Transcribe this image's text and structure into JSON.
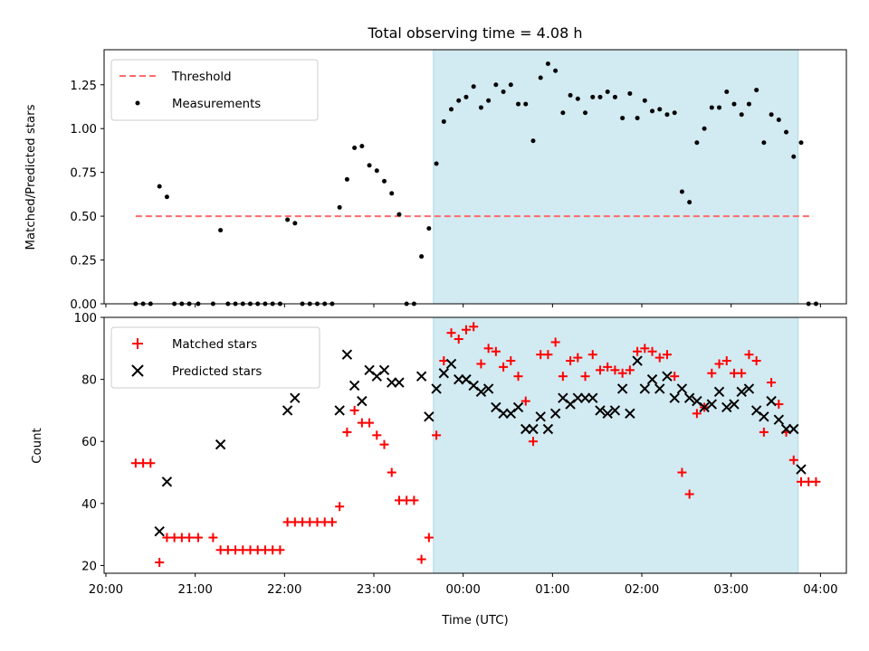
{
  "chart_data": [
    {
      "type": "scatter",
      "title": "Total observing time = 4.08 h",
      "xlabel": "",
      "ylabel": "Matched/Predicted stars",
      "ylim": [
        0,
        1.45
      ],
      "yticks": [
        "0.00",
        "0.25",
        "0.50",
        "0.75",
        "1.00",
        "1.25"
      ],
      "xlim_hours": [
        19.98,
        28.29
      ],
      "legend_position": "top-left",
      "shaded_span": {
        "start": "23:40",
        "end": "03:45",
        "color": "#add8e6"
      },
      "series": [
        {
          "name": "Threshold",
          "kind": "dashed-line",
          "color": "#ff6b6b",
          "y": 0.5,
          "x_range": [
            "20:20",
            "03:55"
          ]
        },
        {
          "name": "Measurements",
          "kind": "points",
          "color": "#000000",
          "points": [
            [
              "20:20",
              0
            ],
            [
              "20:25",
              0
            ],
            [
              "20:30",
              0
            ],
            [
              "20:36",
              0.67
            ],
            [
              "20:41",
              0.61
            ],
            [
              "20:46",
              0
            ],
            [
              "20:51",
              0
            ],
            [
              "20:56",
              0
            ],
            [
              "21:02",
              0
            ],
            [
              "21:12",
              0
            ],
            [
              "21:17",
              0.42
            ],
            [
              "21:22",
              0
            ],
            [
              "21:27",
              0
            ],
            [
              "21:32",
              0
            ],
            [
              "21:37",
              0
            ],
            [
              "21:42",
              0
            ],
            [
              "21:47",
              0
            ],
            [
              "21:52",
              0
            ],
            [
              "21:57",
              0
            ],
            [
              "22:02",
              0.48
            ],
            [
              "22:07",
              0.46
            ],
            [
              "22:12",
              0
            ],
            [
              "22:17",
              0
            ],
            [
              "22:22",
              0
            ],
            [
              "22:27",
              0
            ],
            [
              "22:32",
              0
            ],
            [
              "22:37",
              0.55
            ],
            [
              "22:42",
              0.71
            ],
            [
              "22:47",
              0.89
            ],
            [
              "22:52",
              0.9
            ],
            [
              "22:57",
              0.79
            ],
            [
              "23:02",
              0.76
            ],
            [
              "23:07",
              0.7
            ],
            [
              "23:12",
              0.63
            ],
            [
              "23:17",
              0.51
            ],
            [
              "23:22",
              0
            ],
            [
              "23:27",
              0
            ],
            [
              "23:32",
              0.27
            ],
            [
              "23:37",
              0.43
            ],
            [
              "23:42",
              0.8
            ],
            [
              "23:47",
              1.04
            ],
            [
              "23:52",
              1.11
            ],
            [
              "23:57",
              1.16
            ],
            [
              "00:02",
              1.18
            ],
            [
              "00:07",
              1.24
            ],
            [
              "00:12",
              1.12
            ],
            [
              "00:17",
              1.16
            ],
            [
              "00:22",
              1.25
            ],
            [
              "00:27",
              1.21
            ],
            [
              "00:32",
              1.25
            ],
            [
              "00:37",
              1.14
            ],
            [
              "00:42",
              1.14
            ],
            [
              "00:47",
              0.93
            ],
            [
              "00:52",
              1.29
            ],
            [
              "00:57",
              1.37
            ],
            [
              "01:02",
              1.33
            ],
            [
              "01:07",
              1.09
            ],
            [
              "01:12",
              1.19
            ],
            [
              "01:17",
              1.17
            ],
            [
              "01:22",
              1.09
            ],
            [
              "01:27",
              1.18
            ],
            [
              "01:32",
              1.18
            ],
            [
              "01:37",
              1.21
            ],
            [
              "01:42",
              1.18
            ],
            [
              "01:47",
              1.06
            ],
            [
              "01:52",
              1.2
            ],
            [
              "01:57",
              1.06
            ],
            [
              "02:02",
              1.16
            ],
            [
              "02:07",
              1.1
            ],
            [
              "02:12",
              1.11
            ],
            [
              "02:17",
              1.08
            ],
            [
              "02:22",
              1.09
            ],
            [
              "02:27",
              0.64
            ],
            [
              "02:32",
              0.58
            ],
            [
              "02:37",
              0.92
            ],
            [
              "02:42",
              1.0
            ],
            [
              "02:47",
              1.12
            ],
            [
              "02:52",
              1.12
            ],
            [
              "02:57",
              1.21
            ],
            [
              "03:02",
              1.14
            ],
            [
              "03:07",
              1.08
            ],
            [
              "03:12",
              1.14
            ],
            [
              "03:17",
              1.22
            ],
            [
              "03:22",
              0.92
            ],
            [
              "03:27",
              1.08
            ],
            [
              "03:32",
              1.05
            ],
            [
              "03:37",
              0.98
            ],
            [
              "03:42",
              0.84
            ],
            [
              "03:47",
              0.92
            ],
            [
              "03:52",
              0
            ],
            [
              "03:57",
              0
            ]
          ]
        }
      ]
    },
    {
      "type": "scatter",
      "title": "",
      "xlabel": "Time (UTC)",
      "ylabel": "Count",
      "ylim": [
        17.5,
        100
      ],
      "yticks": [
        "20",
        "40",
        "60",
        "80",
        "100"
      ],
      "xticks": [
        "20:00",
        "21:00",
        "22:00",
        "23:00",
        "00:00",
        "01:00",
        "02:00",
        "03:00",
        "04:00"
      ],
      "xlim_hours": [
        19.98,
        28.29
      ],
      "legend_position": "top-left",
      "shaded_span": {
        "start": "23:40",
        "end": "03:45",
        "color": "#add8e6"
      },
      "series": [
        {
          "name": "Matched stars",
          "marker": "plus",
          "color": "#ff0000",
          "points": [
            [
              "20:20",
              53
            ],
            [
              "20:25",
              53
            ],
            [
              "20:30",
              53
            ],
            [
              "20:36",
              21
            ],
            [
              "20:41",
              29
            ],
            [
              "20:46",
              29
            ],
            [
              "20:51",
              29
            ],
            [
              "20:56",
              29
            ],
            [
              "21:02",
              29
            ],
            [
              "21:12",
              29
            ],
            [
              "21:17",
              25
            ],
            [
              "21:22",
              25
            ],
            [
              "21:27",
              25
            ],
            [
              "21:32",
              25
            ],
            [
              "21:37",
              25
            ],
            [
              "21:42",
              25
            ],
            [
              "21:47",
              25
            ],
            [
              "21:52",
              25
            ],
            [
              "21:57",
              25
            ],
            [
              "22:02",
              34
            ],
            [
              "22:07",
              34
            ],
            [
              "22:12",
              34
            ],
            [
              "22:17",
              34
            ],
            [
              "22:22",
              34
            ],
            [
              "22:27",
              34
            ],
            [
              "22:32",
              34
            ],
            [
              "22:37",
              39
            ],
            [
              "22:42",
              63
            ],
            [
              "22:47",
              70
            ],
            [
              "22:52",
              66
            ],
            [
              "22:57",
              66
            ],
            [
              "23:02",
              62
            ],
            [
              "23:07",
              59
            ],
            [
              "23:12",
              50
            ],
            [
              "23:17",
              41
            ],
            [
              "23:22",
              41
            ],
            [
              "23:27",
              41
            ],
            [
              "23:32",
              22
            ],
            [
              "23:37",
              29
            ],
            [
              "23:42",
              62
            ],
            [
              "23:47",
              86
            ],
            [
              "23:52",
              95
            ],
            [
              "23:57",
              93
            ],
            [
              "00:02",
              96
            ],
            [
              "00:07",
              97
            ],
            [
              "00:12",
              85
            ],
            [
              "00:17",
              90
            ],
            [
              "00:22",
              89
            ],
            [
              "00:27",
              84
            ],
            [
              "00:32",
              86
            ],
            [
              "00:37",
              81
            ],
            [
              "00:42",
              73
            ],
            [
              "00:47",
              60
            ],
            [
              "00:52",
              88
            ],
            [
              "00:57",
              88
            ],
            [
              "01:02",
              92
            ],
            [
              "01:07",
              81
            ],
            [
              "01:12",
              86
            ],
            [
              "01:17",
              87
            ],
            [
              "01:22",
              81
            ],
            [
              "01:27",
              88
            ],
            [
              "01:32",
              83
            ],
            [
              "01:37",
              84
            ],
            [
              "01:42",
              83
            ],
            [
              "01:47",
              82
            ],
            [
              "01:52",
              83
            ],
            [
              "01:57",
              89
            ],
            [
              "02:02",
              90
            ],
            [
              "02:07",
              89
            ],
            [
              "02:12",
              87
            ],
            [
              "02:17",
              88
            ],
            [
              "02:22",
              81
            ],
            [
              "02:27",
              50
            ],
            [
              "02:32",
              43
            ],
            [
              "02:37",
              69
            ],
            [
              "02:42",
              71
            ],
            [
              "02:47",
              82
            ],
            [
              "02:52",
              85
            ],
            [
              "02:57",
              86
            ],
            [
              "03:02",
              82
            ],
            [
              "03:07",
              82
            ],
            [
              "03:12",
              88
            ],
            [
              "03:17",
              86
            ],
            [
              "03:22",
              63
            ],
            [
              "03:27",
              79
            ],
            [
              "03:32",
              72
            ],
            [
              "03:37",
              63
            ],
            [
              "03:42",
              54
            ],
            [
              "03:47",
              47
            ],
            [
              "03:52",
              47
            ],
            [
              "03:57",
              47
            ]
          ]
        },
        {
          "name": "Predicted stars",
          "marker": "x",
          "color": "#000000",
          "points": [
            [
              "20:36",
              31
            ],
            [
              "20:41",
              47
            ],
            [
              "21:17",
              59
            ],
            [
              "22:02",
              70
            ],
            [
              "22:07",
              74
            ],
            [
              "22:37",
              70
            ],
            [
              "22:42",
              88
            ],
            [
              "22:47",
              78
            ],
            [
              "22:52",
              73
            ],
            [
              "22:57",
              83
            ],
            [
              "23:02",
              81
            ],
            [
              "23:07",
              83
            ],
            [
              "23:12",
              79
            ],
            [
              "23:17",
              79
            ],
            [
              "23:32",
              81
            ],
            [
              "23:37",
              68
            ],
            [
              "23:42",
              77
            ],
            [
              "23:47",
              82
            ],
            [
              "23:52",
              85
            ],
            [
              "23:57",
              80
            ],
            [
              "00:02",
              80
            ],
            [
              "00:07",
              78
            ],
            [
              "00:12",
              76
            ],
            [
              "00:17",
              77
            ],
            [
              "00:22",
              71
            ],
            [
              "00:27",
              69
            ],
            [
              "00:32",
              69
            ],
            [
              "00:37",
              71
            ],
            [
              "00:42",
              64
            ],
            [
              "00:47",
              64
            ],
            [
              "00:52",
              68
            ],
            [
              "00:57",
              64
            ],
            [
              "01:02",
              69
            ],
            [
              "01:07",
              74
            ],
            [
              "01:12",
              72
            ],
            [
              "01:17",
              74
            ],
            [
              "01:22",
              74
            ],
            [
              "01:27",
              74
            ],
            [
              "01:32",
              70
            ],
            [
              "01:37",
              69
            ],
            [
              "01:42",
              70
            ],
            [
              "01:47",
              77
            ],
            [
              "01:52",
              69
            ],
            [
              "01:57",
              86
            ],
            [
              "02:02",
              77
            ],
            [
              "02:07",
              80
            ],
            [
              "02:12",
              77
            ],
            [
              "02:17",
              81
            ],
            [
              "02:22",
              74
            ],
            [
              "02:27",
              77
            ],
            [
              "02:32",
              74
            ],
            [
              "02:37",
              73
            ],
            [
              "02:42",
              71
            ],
            [
              "02:47",
              72
            ],
            [
              "02:52",
              76
            ],
            [
              "02:57",
              71
            ],
            [
              "03:02",
              72
            ],
            [
              "03:07",
              76
            ],
            [
              "03:12",
              77
            ],
            [
              "03:17",
              70
            ],
            [
              "03:22",
              68
            ],
            [
              "03:27",
              73
            ],
            [
              "03:32",
              67
            ],
            [
              "03:37",
              64
            ],
            [
              "03:42",
              64
            ],
            [
              "03:47",
              51
            ]
          ]
        }
      ]
    }
  ]
}
